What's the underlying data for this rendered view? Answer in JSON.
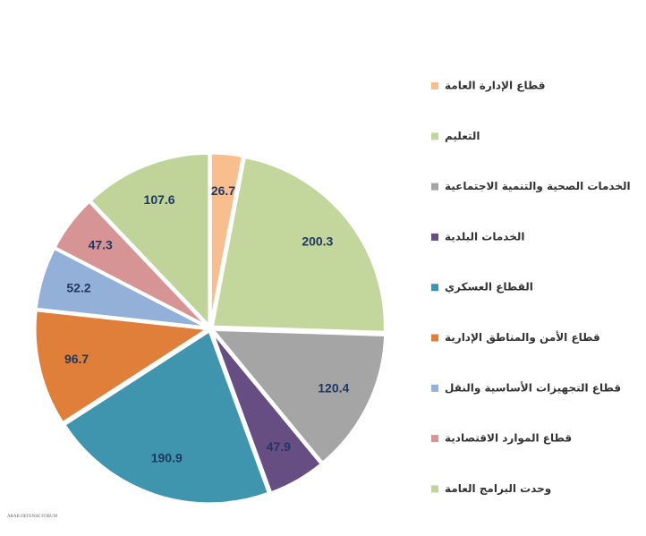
{
  "chart_data": {
    "type": "pie",
    "categories": [
      "قطاع الإدارة العامة",
      "التعليم",
      "الخدمات الصحية والتنمية الاجتماعية",
      "الخدمات البلدية",
      "القطاع العسكري",
      "قطاع الأمن والمناطق الإدارية",
      "قطاع التجهيزات الأساسية والنقل",
      "قطاع الموارد الاقتصادية",
      "وحدت البرامج العامة"
    ],
    "values": [
      26.7,
      200.3,
      120.4,
      47.9,
      190.9,
      96.7,
      52.2,
      47.3,
      107.6
    ],
    "colors": [
      "#f9be8e",
      "#c3d69b",
      "#a5a5a5",
      "#664e82",
      "#3e95ad",
      "#df7f3a",
      "#93b0d8",
      "#d69594",
      "#c0d49a"
    ],
    "legend": "right",
    "watermark": "ARAB DEFENSE FORUM"
  }
}
